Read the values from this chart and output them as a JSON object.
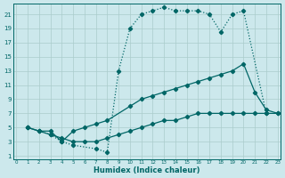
{
  "xlabel": "Humidex (Indice chaleur)",
  "bg_color": "#cce8ec",
  "grid_color": "#aacccc",
  "line_color": "#006666",
  "xlim": [
    -0.3,
    23.3
  ],
  "ylim": [
    0.5,
    22.5
  ],
  "xticks": [
    0,
    1,
    2,
    3,
    4,
    5,
    6,
    7,
    8,
    9,
    10,
    11,
    12,
    13,
    14,
    15,
    16,
    17,
    18,
    19,
    20,
    21,
    22,
    23
  ],
  "yticks": [
    1,
    3,
    5,
    7,
    9,
    11,
    13,
    15,
    17,
    19,
    21
  ],
  "line1_x": [
    1,
    2,
    3,
    4,
    5,
    6,
    7,
    8,
    10,
    11,
    12,
    13,
    14,
    15,
    16,
    17,
    18,
    19,
    20,
    21,
    22,
    23
  ],
  "line1_y": [
    5,
    4.5,
    4.5,
    3,
    4.5,
    5,
    5.5,
    6,
    8,
    9,
    9.5,
    10,
    10.5,
    11,
    11.5,
    12,
    12.5,
    13,
    14,
    10,
    7.5,
    7
  ],
  "line2_x": [
    1,
    2,
    3,
    4,
    5,
    6,
    7,
    8,
    9,
    10,
    11,
    12,
    13,
    14,
    15,
    16,
    17,
    18,
    19,
    20,
    21,
    22,
    23
  ],
  "line2_y": [
    5,
    4.5,
    4,
    3.5,
    3,
    3,
    3,
    3.5,
    4,
    4.5,
    5,
    5.5,
    6,
    6,
    6.5,
    7,
    7,
    7,
    7,
    7,
    7,
    7,
    7
  ],
  "line3_x": [
    1,
    2,
    3,
    4,
    5,
    7,
    8,
    9,
    10,
    11,
    12,
    13,
    14,
    15,
    16,
    17,
    18,
    19,
    20,
    22
  ],
  "line3_y": [
    5,
    4.5,
    4,
    3,
    2.5,
    2,
    1.5,
    13,
    19,
    21,
    21.5,
    22,
    21.5,
    21.5,
    21.5,
    21,
    18.5,
    21,
    21.5,
    7
  ]
}
